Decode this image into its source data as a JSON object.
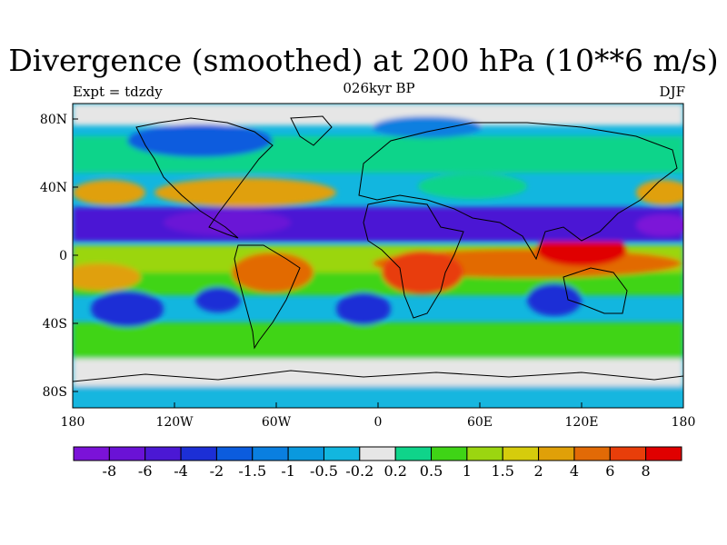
{
  "title": "Divergence (smoothed) at 200 hPa (10**6 m/s)",
  "subtitle": {
    "left": "Expt = tdzdy",
    "center": "026kyr BP",
    "right": "DJF"
  },
  "y_ticks": [
    "80N",
    "40N",
    "0",
    "40S",
    "80S"
  ],
  "x_ticks": [
    "180",
    "120W",
    "60W",
    "0",
    "60E",
    "120E",
    "180"
  ],
  "colorbar": {
    "labels": [
      "-8",
      "-6",
      "-4",
      "-2",
      "-1.5",
      "-1",
      "-0.5",
      "-0.2",
      "0.2",
      "0.5",
      "1",
      "1.5",
      "2",
      "4",
      "6",
      "8"
    ],
    "colors": [
      "#7b12d8",
      "#6a12d6",
      "#4b18d4",
      "#1c2fd6",
      "#0b5cde",
      "#0a7fe0",
      "#0a99de",
      "#12b6df",
      "#e6e6e6",
      "#0fd48a",
      "#3fd416",
      "#9bd610",
      "#d6cc0c",
      "#e0a008",
      "#e26a06",
      "#e83e0a",
      "#e00000"
    ]
  },
  "chart_data": {
    "type": "heatmap",
    "title": "Divergence (smoothed) at 200 hPa (10**6 m/s)",
    "variable": "Divergence (smoothed)",
    "level": "200 hPa",
    "units": "10**6 m/s",
    "experiment": "tdzdy",
    "period": "026kyr BP",
    "season": "DJF",
    "xlim": [
      -180,
      180
    ],
    "ylim": [
      -90,
      90
    ],
    "contour_levels": [
      -8,
      -6,
      -4,
      -2,
      -1.5,
      -1,
      -0.5,
      -0.2,
      0.2,
      0.5,
      1,
      1.5,
      2,
      4,
      6,
      8
    ]
  }
}
